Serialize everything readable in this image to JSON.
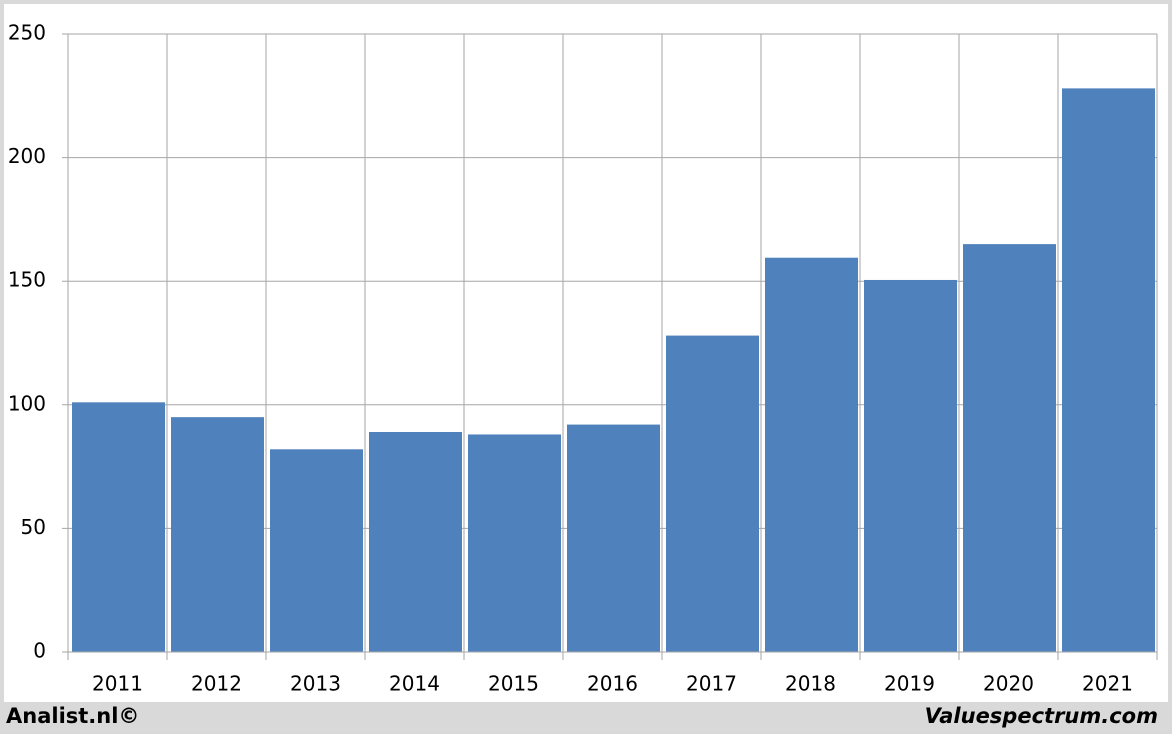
{
  "chart_data": {
    "type": "bar",
    "categories": [
      "2011",
      "2012",
      "2013",
      "2014",
      "2015",
      "2016",
      "2017",
      "2018",
      "2019",
      "2020",
      "2021"
    ],
    "values": [
      101,
      95,
      82,
      89,
      88,
      92,
      128,
      159.5,
      150.5,
      165,
      228
    ],
    "color": "#4f81bd",
    "ylim": [
      0,
      250
    ],
    "yticks": [
      0,
      50,
      100,
      150,
      200,
      250
    ],
    "grid": true,
    "footer_left": "Analist.nl©",
    "footer_right": "Valuespectrum.com"
  }
}
